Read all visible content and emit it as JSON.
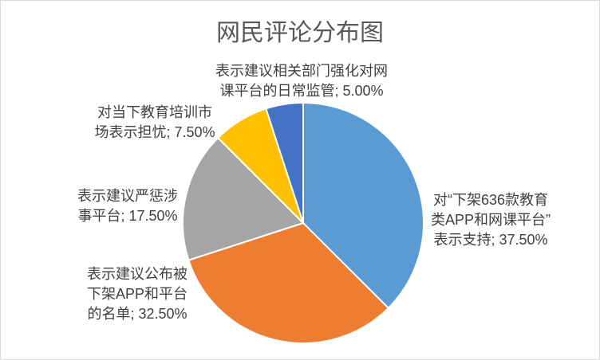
{
  "chart_data": {
    "type": "pie",
    "title": "网民评论分布图",
    "categories": [
      "对“下架636款教育类APP和网课平台”表示支持",
      "表示建议公布被下架APP和平台的名单",
      "表示建议严惩涉事平台",
      "对当下教育培训市场表示担忧",
      "表示建议相关部门强化对网课平台的日常监管"
    ],
    "values": [
      37.5,
      32.5,
      17.5,
      7.5,
      5.0
    ],
    "colors": [
      "#5B9BD5",
      "#ED7D31",
      "#A5A5A5",
      "#FFC000",
      "#4472C4"
    ],
    "legend": "none"
  }
}
